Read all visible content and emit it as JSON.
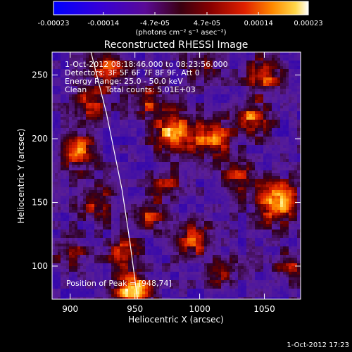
{
  "chart_data": {
    "type": "heatmap",
    "title": "Reconstructed RHESSI Image",
    "xlabel": "Heliocentric X (arcsec)",
    "ylabel": "Heliocentric Y (arcsec)",
    "xlim": [
      886,
      1078
    ],
    "ylim": [
      74,
      268
    ],
    "x_ticks": [
      900,
      950,
      1000,
      1050
    ],
    "x_tick_labels": [
      "900",
      "950",
      "1000",
      "1050"
    ],
    "y_ticks": [
      100,
      150,
      200,
      250
    ],
    "y_tick_labels": [
      "100",
      "150",
      "200",
      "250"
    ],
    "colorbar": {
      "min": -0.00023,
      "max": 0.00023,
      "tick_values": [
        -0.00023,
        -0.00014,
        -4.7e-05,
        4.7e-05,
        0.00014,
        0.00023
      ],
      "tick_labels": [
        "-0.00023",
        "-0.00014",
        "-4.7e-05",
        "4.7e-05",
        "0.00014",
        "0.00023"
      ],
      "unit_label": "(photons cm⁻² s⁻¹ asec⁻²)"
    },
    "annotations": {
      "time_range": "1-Oct-2012 08:18:46.000 to 08:23:56.000",
      "detectors": "Detectors: 3F 5F 6F 7F 8F 9F, Att 0",
      "energy_range": "Energy Range: 25.0 - 50.0 keV",
      "method": "Clean",
      "total_counts": "Total counts: 5.01E+03",
      "peak": "Position of Peak = [948,74]"
    },
    "peak": {
      "x": 948,
      "y": 74
    },
    "limb_curve": {
      "x": [
        916,
        928,
        940,
        946,
        952
      ],
      "y": [
        268,
        220,
        160,
        120,
        74
      ]
    },
    "grid": false,
    "timestamp": "1-Oct-2012 17:23"
  }
}
